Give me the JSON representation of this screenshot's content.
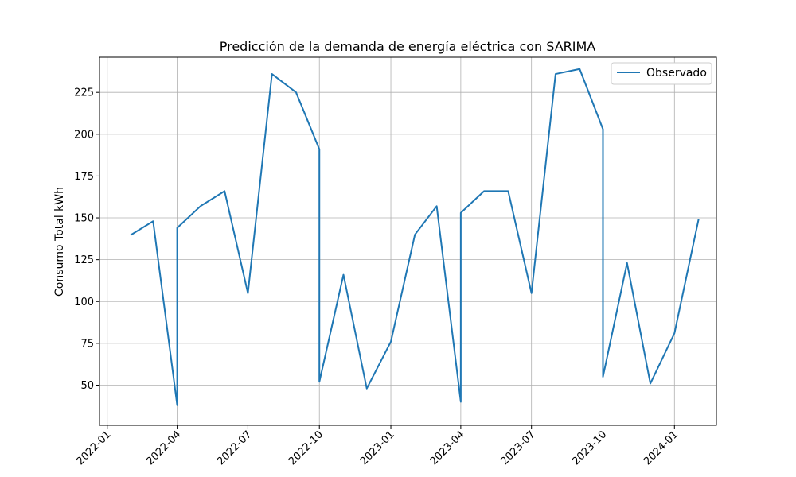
{
  "chart_data": {
    "type": "line",
    "title": "Predicción de la demanda de energía eléctrica con SARIMA",
    "xlabel": "",
    "ylabel": "Consumo Total kWh",
    "grid": true,
    "legend_position": "top-right",
    "xlim": [
      "2021-12-22",
      "2024-02-24"
    ],
    "ylim": [
      26,
      246
    ],
    "x_ticks": [
      "2022-01",
      "2022-04",
      "2022-07",
      "2022-10",
      "2023-01",
      "2023-04",
      "2023-07",
      "2023-10",
      "2024-01"
    ],
    "y_ticks": [
      50,
      75,
      100,
      125,
      150,
      175,
      200,
      225
    ],
    "series": [
      {
        "name": "Observado",
        "color": "#1f77b4",
        "points": [
          {
            "x": "2022-02-01",
            "y": 140
          },
          {
            "x": "2022-03-01",
            "y": 148
          },
          {
            "x": "2022-04-01",
            "y": 38
          },
          {
            "x": "2022-04-01",
            "y": 144
          },
          {
            "x": "2022-05-01",
            "y": 157
          },
          {
            "x": "2022-06-01",
            "y": 166
          },
          {
            "x": "2022-07-01",
            "y": 105
          },
          {
            "x": "2022-08-01",
            "y": 236
          },
          {
            "x": "2022-09-01",
            "y": 225
          },
          {
            "x": "2022-10-01",
            "y": 191
          },
          {
            "x": "2022-10-01",
            "y": 52
          },
          {
            "x": "2022-11-01",
            "y": 116
          },
          {
            "x": "2022-12-01",
            "y": 48
          },
          {
            "x": "2023-01-01",
            "y": 76
          },
          {
            "x": "2023-02-01",
            "y": 140
          },
          {
            "x": "2023-03-01",
            "y": 157
          },
          {
            "x": "2023-04-01",
            "y": 40
          },
          {
            "x": "2023-04-01",
            "y": 153
          },
          {
            "x": "2023-05-01",
            "y": 166
          },
          {
            "x": "2023-06-01",
            "y": 166
          },
          {
            "x": "2023-07-01",
            "y": 105
          },
          {
            "x": "2023-08-01",
            "y": 236
          },
          {
            "x": "2023-09-01",
            "y": 239
          },
          {
            "x": "2023-10-01",
            "y": 203
          },
          {
            "x": "2023-10-01",
            "y": 55
          },
          {
            "x": "2023-11-01",
            "y": 123
          },
          {
            "x": "2023-12-01",
            "y": 51
          },
          {
            "x": "2024-01-01",
            "y": 81
          },
          {
            "x": "2024-02-01",
            "y": 149
          }
        ]
      }
    ]
  }
}
